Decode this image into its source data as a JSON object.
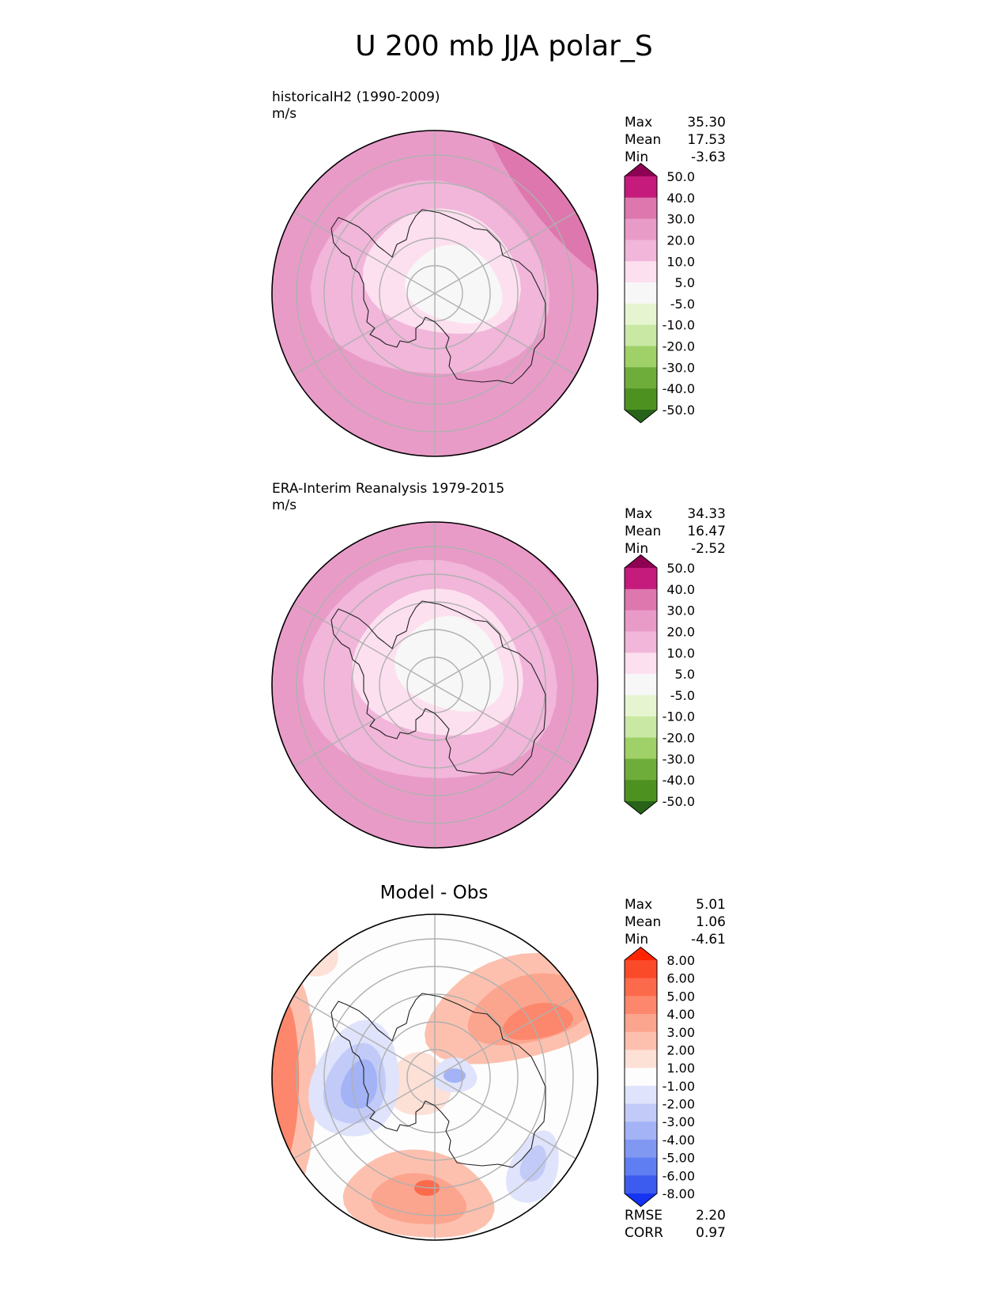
{
  "figure_title": "U 200 mb JJA polar_S",
  "panels": [
    {
      "id": "model",
      "title_line1": "historicalH2 (1990-2009)",
      "title_line2": "m/s",
      "stats": [
        {
          "label": "Max",
          "value": "35.30"
        },
        {
          "label": "Mean",
          "value": "17.53"
        },
        {
          "label": "Min",
          "value": "-3.63"
        }
      ],
      "colorbar": {
        "labels": [
          "50.0",
          "40.0",
          "30.0",
          "20.0",
          "10.0",
          "5.0",
          "-5.0",
          "-10.0",
          "-20.0",
          "-30.0",
          "-40.0",
          "-50.0"
        ],
        "colors": [
          "#8e0152",
          "#c51b7d",
          "#de77ae",
          "#e99bc8",
          "#f1b6da",
          "#fde0ef",
          "#f7f7f7",
          "#e6f5d0",
          "#c8e8a4",
          "#9fd168",
          "#6fad3a",
          "#4d9221",
          "#276419"
        ]
      }
    },
    {
      "id": "obs",
      "title_line1": "ERA-Interim Reanalysis 1979-2015",
      "title_line2": "m/s",
      "stats": [
        {
          "label": "Max",
          "value": "34.33"
        },
        {
          "label": "Mean",
          "value": "16.47"
        },
        {
          "label": "Min",
          "value": "-2.52"
        }
      ],
      "colorbar": {
        "labels": [
          "50.0",
          "40.0",
          "30.0",
          "20.0",
          "10.0",
          "5.0",
          "-5.0",
          "-10.0",
          "-20.0",
          "-30.0",
          "-40.0",
          "-50.0"
        ],
        "colors": [
          "#8e0152",
          "#c51b7d",
          "#de77ae",
          "#e99bc8",
          "#f1b6da",
          "#fde0ef",
          "#f7f7f7",
          "#e6f5d0",
          "#c8e8a4",
          "#9fd168",
          "#6fad3a",
          "#4d9221",
          "#276419"
        ]
      }
    },
    {
      "id": "diff",
      "title": "Model - Obs",
      "stats": [
        {
          "label": "Max",
          "value": "5.01"
        },
        {
          "label": "Mean",
          "value": "1.06"
        },
        {
          "label": "Min",
          "value": "-4.61"
        }
      ],
      "metrics": [
        {
          "label": "RMSE",
          "value": "2.20"
        },
        {
          "label": "CORR",
          "value": "0.97"
        }
      ],
      "colorbar": {
        "labels": [
          "8.00",
          "6.00",
          "5.00",
          "4.00",
          "3.00",
          "2.00",
          "1.00",
          "-1.00",
          "-2.00",
          "-3.00",
          "-4.00",
          "-5.00",
          "-6.00",
          "-8.00"
        ],
        "colors": [
          "#ff2400",
          "#fb4a2a",
          "#fc6a4c",
          "#fd876c",
          "#fca58e",
          "#fdc0ae",
          "#fde0d6",
          "#fdfdfd",
          "#dfe3fb",
          "#c2cbf8",
          "#a3b3f6",
          "#8198f3",
          "#5f7ef1",
          "#3b5cef",
          "#1533f2"
        ]
      }
    }
  ],
  "chart_data": {
    "type": "polar contour maps",
    "title": "U 200 mb JJA polar_S",
    "variable": "U",
    "level": "200 mb",
    "season": "JJA",
    "region": "polar_S",
    "units": "m/s",
    "maps": [
      {
        "name": "historicalH2 (1990-2009)",
        "max": 35.3,
        "mean": 17.53,
        "min": -3.63,
        "contour_levels": [
          -50,
          -40,
          -30,
          -20,
          -10,
          -5,
          5,
          10,
          20,
          30,
          40,
          50
        ]
      },
      {
        "name": "ERA-Interim Reanalysis 1979-2015",
        "max": 34.33,
        "mean": 16.47,
        "min": -2.52,
        "contour_levels": [
          -50,
          -40,
          -30,
          -20,
          -10,
          -5,
          5,
          10,
          20,
          30,
          40,
          50
        ]
      },
      {
        "name": "Model - Obs",
        "max": 5.01,
        "mean": 1.06,
        "min": -4.61,
        "rmse": 2.2,
        "corr": 0.97,
        "contour_levels": [
          -8,
          -6,
          -5,
          -4,
          -3,
          -2,
          -1,
          1,
          2,
          3,
          4,
          5,
          6,
          8
        ]
      }
    ]
  }
}
